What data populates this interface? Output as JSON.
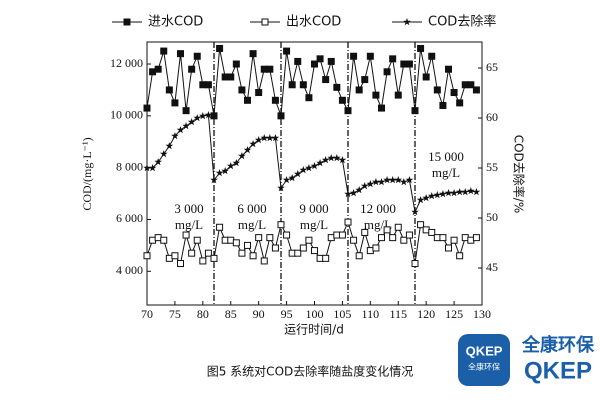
{
  "chart_data": {
    "type": "line",
    "x": [
      70,
      71,
      72,
      73,
      74,
      75,
      76,
      77,
      78,
      79,
      80,
      81,
      82,
      83,
      84,
      85,
      86,
      87,
      88,
      89,
      90,
      91,
      92,
      93,
      94,
      95,
      96,
      97,
      98,
      99,
      100,
      101,
      102,
      103,
      104,
      105,
      106,
      107,
      108,
      109,
      110,
      111,
      112,
      113,
      114,
      115,
      116,
      117,
      118,
      119,
      120,
      121,
      122,
      123,
      124,
      125,
      126,
      127,
      128,
      129
    ],
    "series": [
      {
        "name": "进水COD",
        "color": "#111111",
        "marker": "square-filled",
        "values": [
          10300,
          11700,
          11800,
          12500,
          11000,
          10500,
          12400,
          10200,
          11800,
          12300,
          11200,
          11200,
          10000,
          12600,
          11500,
          11500,
          12000,
          11000,
          10600,
          12400,
          10900,
          11800,
          11800,
          10600,
          10000,
          12500,
          11200,
          12100,
          11200,
          10700,
          12000,
          12200,
          11400,
          12100,
          11100,
          10600,
          10200,
          12300,
          11000,
          11400,
          12300,
          10800,
          10300,
          11700,
          12200,
          10800,
          12000,
          12000,
          10200,
          12600,
          11500,
          12300,
          11000,
          10400,
          11800,
          10900,
          10500,
          11200,
          11200,
          11000
        ]
      },
      {
        "name": "出水COD",
        "color": "#111111",
        "marker": "square-open",
        "values": [
          4600,
          5200,
          5300,
          5200,
          4500,
          4600,
          4300,
          5400,
          4700,
          5200,
          4400,
          4700,
          4500,
          5700,
          5200,
          5200,
          5100,
          4700,
          5000,
          4600,
          5300,
          4400,
          5300,
          4900,
          5800,
          5400,
          4700,
          4700,
          4900,
          5200,
          4800,
          4500,
          4500,
          5300,
          5400,
          5400,
          5900,
          5200,
          4600,
          5500,
          4800,
          4900,
          5300,
          5600,
          5300,
          5700,
          5200,
          5400,
          4300,
          5800,
          5600,
          5500,
          5300,
          5300,
          4900,
          5200,
          4600,
          5300,
          5200,
          5300
        ]
      },
      {
        "name": "COD去除率",
        "color": "#111111",
        "marker": "star",
        "axis": "y2",
        "values": [
          55.0,
          55.0,
          55.6,
          56.4,
          57.2,
          58.2,
          58.8,
          59.2,
          59.6,
          60.0,
          60.2,
          60.3,
          53.8,
          54.5,
          54.7,
          55.2,
          55.5,
          56.2,
          56.8,
          57.4,
          57.8,
          58.0,
          58.0,
          58.0,
          53.0,
          53.8,
          54.0,
          54.4,
          54.8,
          55.0,
          55.2,
          55.5,
          55.8,
          56.0,
          56.0,
          55.8,
          52.4,
          52.5,
          52.8,
          53.2,
          53.4,
          53.6,
          53.6,
          53.8,
          53.8,
          53.8,
          53.6,
          53.8,
          50.6,
          51.8,
          52.0,
          52.2,
          52.3,
          52.4,
          52.5,
          52.5,
          52.6,
          52.6,
          52.7,
          52.6
        ]
      }
    ],
    "xlim": [
      70,
      130
    ],
    "xticks": [
      70,
      75,
      80,
      85,
      90,
      95,
      100,
      105,
      110,
      115,
      120,
      125,
      130
    ],
    "ylim": [
      2700,
      12850
    ],
    "yticks": [
      {
        "value": 4000,
        "label": "4 000"
      },
      {
        "value": 6000,
        "label": "6 000"
      },
      {
        "value": 8000,
        "label": "8 000"
      },
      {
        "value": 10000,
        "label": "10 000"
      },
      {
        "value": 12000,
        "label": "12 000"
      }
    ],
    "y2lim": [
      41.3,
      67.6
    ],
    "y2ticks": [
      45,
      50,
      55,
      60,
      65
    ],
    "xlabel": "运行时间/d",
    "ylabel": "COD/(mg·L⁻¹)",
    "y2label": "COD去除率/%",
    "vlines": [
      82,
      94,
      106,
      118
    ],
    "annotations": [
      [
        "3 000",
        "mg/L"
      ],
      [
        "6 000",
        "mg/L"
      ],
      [
        "9 000",
        "mg/L"
      ],
      [
        "12 000",
        "mg/L"
      ],
      [
        "15 000",
        "mg/L"
      ]
    ],
    "caption": "图5 系统对COD去除率随盐度变化情况"
  },
  "logo": {
    "badge": "QKEP",
    "badge_sub": "全康环保",
    "name_cn": "全康环保",
    "name_en": "QKEP"
  }
}
